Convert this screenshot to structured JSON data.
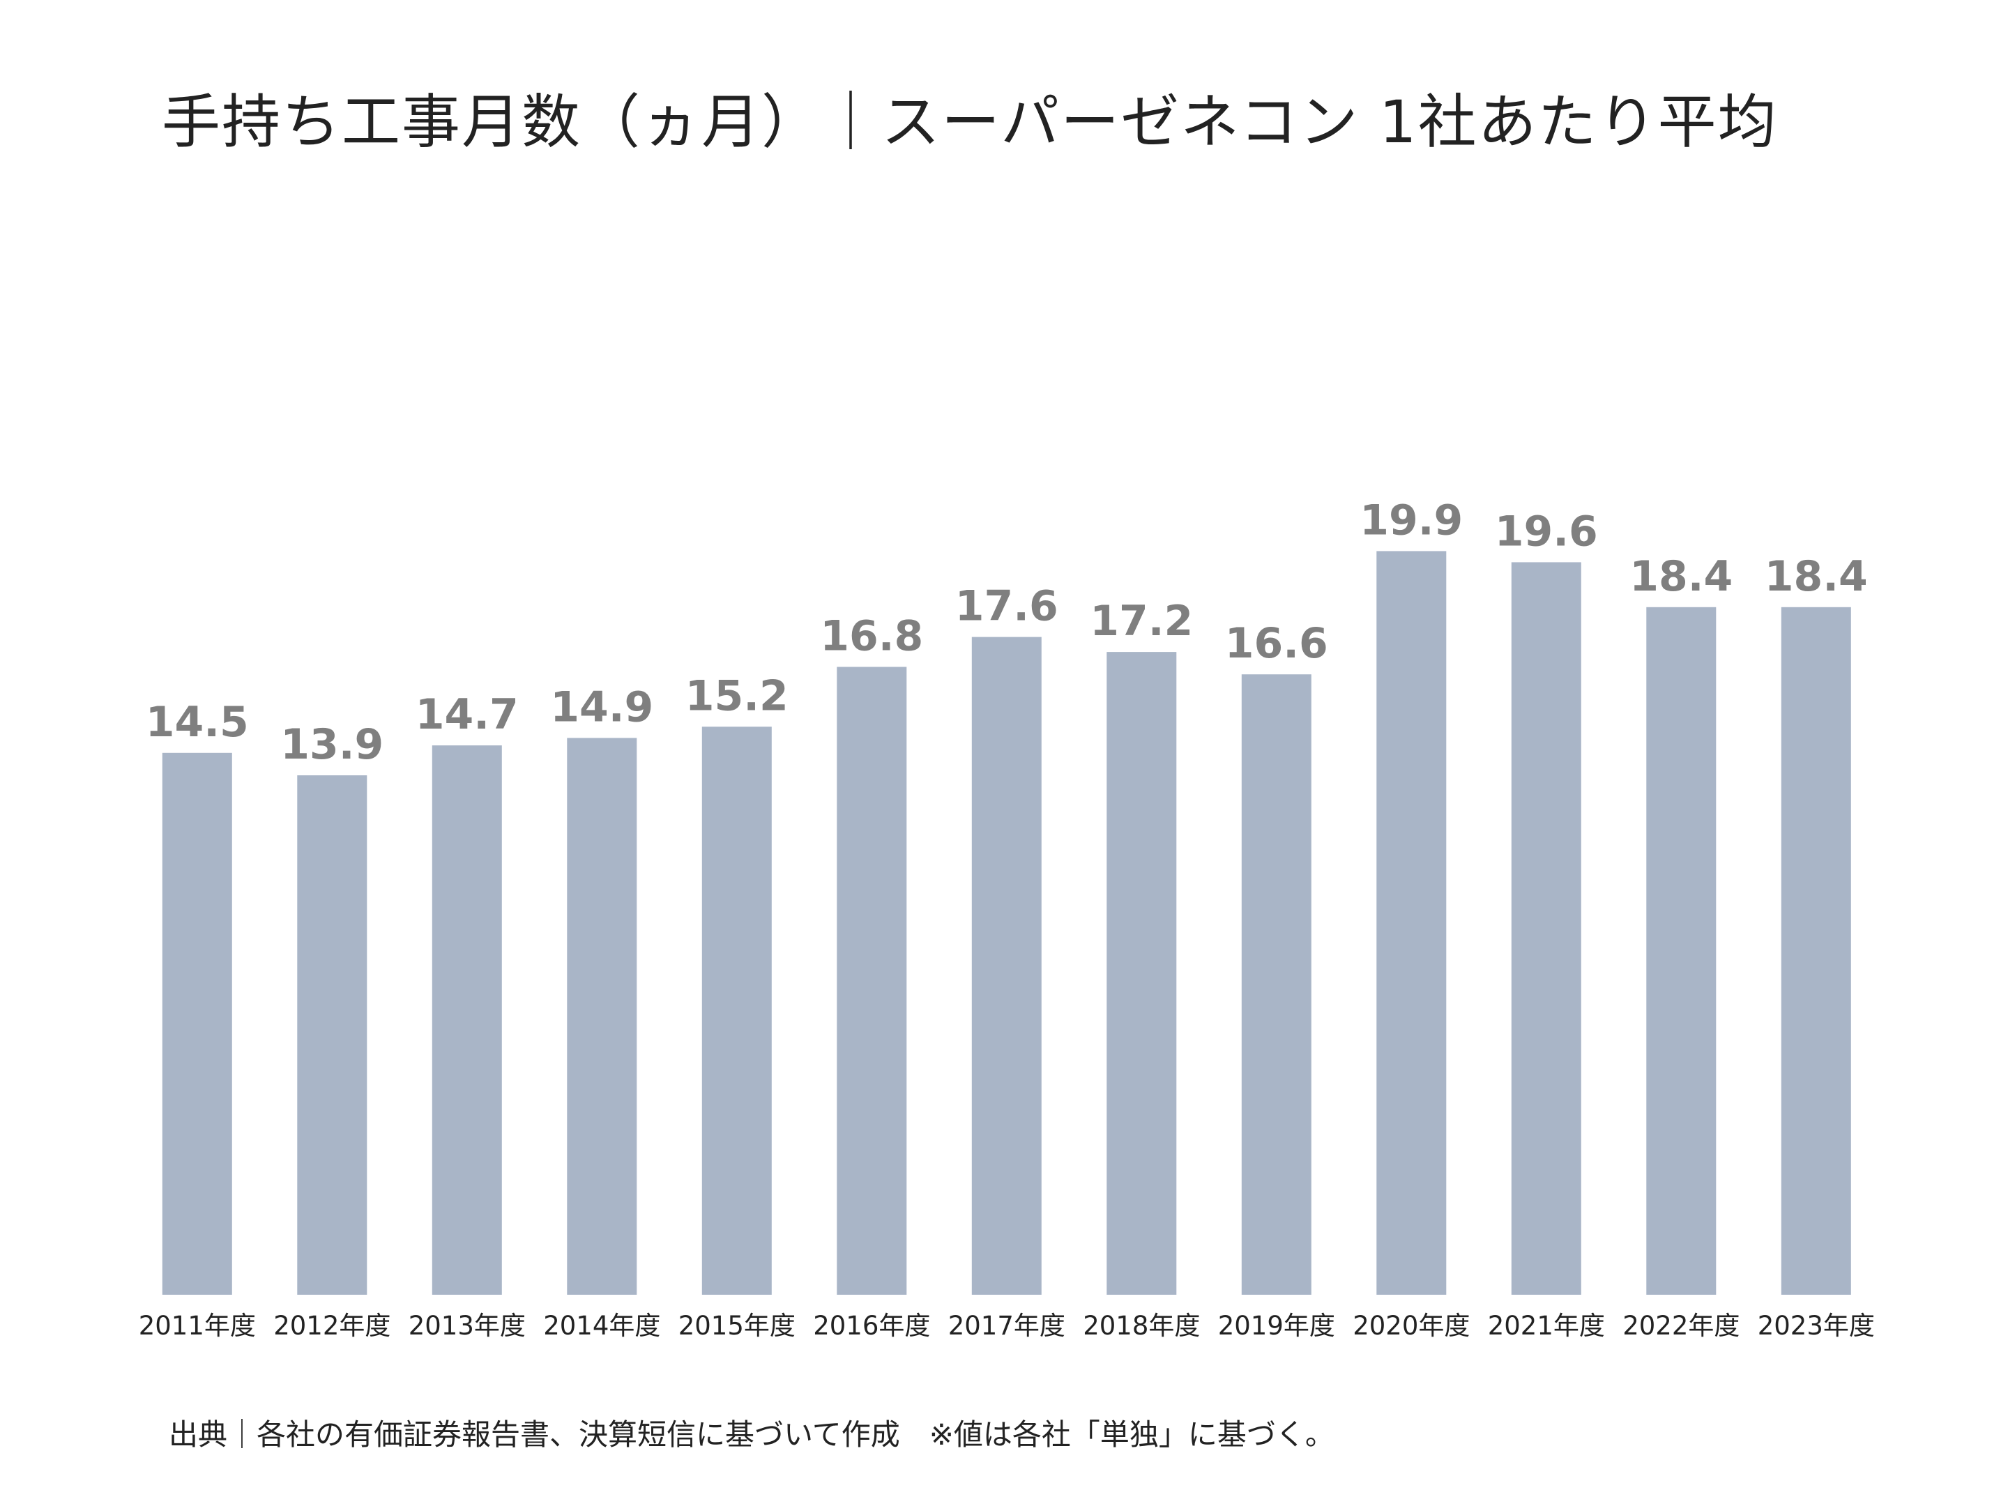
{
  "chart_data": {
    "type": "bar",
    "title": "手持ち工事月数（ヵ月）｜スーパーゼネコン 1社あたり平均",
    "categories": [
      "2011年度",
      "2012年度",
      "2013年度",
      "2014年度",
      "2015年度",
      "2016年度",
      "2017年度",
      "2018年度",
      "2019年度",
      "2020年度",
      "2021年度",
      "2022年度",
      "2023年度"
    ],
    "series": [
      {
        "values": [
          14.5,
          13.9,
          14.7,
          14.9,
          15.2,
          16.8,
          17.6,
          17.2,
          16.6,
          19.9,
          19.6,
          18.4,
          18.4
        ]
      }
    ],
    "value_labels": [
      "14.5",
      "13.9",
      "14.7",
      "14.9",
      "15.2",
      "16.8",
      "17.6",
      "17.2",
      "16.6",
      "19.9",
      "19.6",
      "18.4",
      "18.4"
    ],
    "xlabel": "",
    "ylabel": "",
    "ylim": [
      0,
      20
    ],
    "grid": false,
    "legend": "none",
    "bar_color": "#a9b5c7",
    "label_color": "#7f7f7f",
    "tick_color": "#222222"
  },
  "footer": {
    "source_note": "出典｜各社の有価証券報告書、決算短信に基づいて作成　※値は各社「単独」に基づく。"
  }
}
